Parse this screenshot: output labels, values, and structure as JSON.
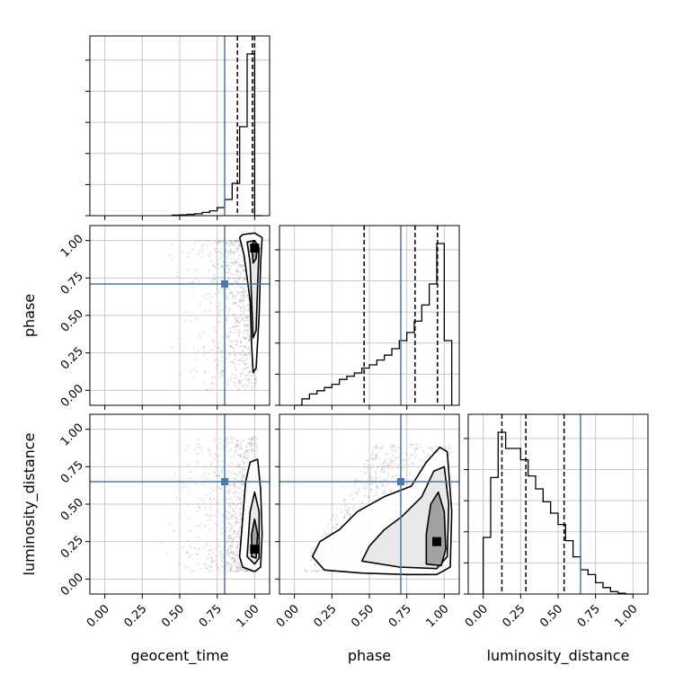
{
  "chart_data": {
    "type": "corner",
    "parameters": [
      "geocent_time",
      "phase",
      "luminosity_distance"
    ],
    "axis_range": [
      -0.1,
      1.1
    ],
    "ticks": [
      0.0,
      0.25,
      0.5,
      0.75,
      1.0
    ],
    "tick_labels": [
      "0.00",
      "0.25",
      "0.50",
      "0.75",
      "1.00"
    ],
    "xlabels": [
      "geocent_time",
      "phase",
      "luminosity_distance"
    ],
    "ylabels": [
      "",
      "phase",
      "luminosity_distance"
    ],
    "grid": true,
    "colors": {
      "truth": "#4878b0",
      "hist": "#000000",
      "scatter": "#8a8a8a",
      "grid": "#c8c8c8"
    },
    "truths": {
      "geocent_time": 0.8,
      "phase": 0.71,
      "luminosity_distance": 0.65
    },
    "histograms": [
      {
        "parameter": "geocent_time",
        "bin_edges": [
          0.45,
          0.5,
          0.55,
          0.6,
          0.65,
          0.7,
          0.75,
          0.8,
          0.85,
          0.9,
          0.95,
          1.0,
          1.05
        ],
        "values": [
          0.003,
          0.005,
          0.008,
          0.012,
          0.02,
          0.03,
          0.05,
          0.1,
          0.2,
          0.55,
          1.0,
          0.0
        ],
        "quantiles": [
          0.885,
          0.985,
          1.0
        ]
      },
      {
        "parameter": "phase",
        "bin_edges": [
          0.0,
          0.05,
          0.1,
          0.15,
          0.2,
          0.25,
          0.3,
          0.35,
          0.4,
          0.45,
          0.5,
          0.55,
          0.6,
          0.65,
          0.7,
          0.75,
          0.8,
          0.85,
          0.9,
          0.95,
          1.0,
          1.05
        ],
        "values": [
          0.0,
          0.04,
          0.07,
          0.09,
          0.11,
          0.13,
          0.16,
          0.18,
          0.2,
          0.23,
          0.25,
          0.28,
          0.31,
          0.35,
          0.4,
          0.45,
          0.52,
          0.62,
          0.75,
          1.0,
          0.4
        ],
        "quantiles": [
          0.465,
          0.805,
          0.955
        ]
      },
      {
        "parameter": "luminosity_distance",
        "bin_edges": [
          0.0,
          0.05,
          0.1,
          0.15,
          0.2,
          0.25,
          0.3,
          0.35,
          0.4,
          0.45,
          0.5,
          0.55,
          0.6,
          0.65,
          0.7,
          0.75,
          0.8,
          0.85,
          0.9,
          0.95,
          1.0
        ],
        "values": [
          0.35,
          0.72,
          1.0,
          0.9,
          0.9,
          0.83,
          0.73,
          0.65,
          0.57,
          0.5,
          0.43,
          0.33,
          0.23,
          0.15,
          0.12,
          0.07,
          0.04,
          0.015,
          0.005,
          0.0
        ],
        "quantiles": [
          0.125,
          0.285,
          0.54
        ]
      }
    ],
    "scatter_panels": [
      {
        "x": "geocent_time",
        "y": "phase",
        "truth_point": [
          0.8,
          0.71
        ],
        "density_peak": [
          1.0,
          0.95
        ],
        "contour_levels": [
          [
            [
              0.9,
              1.02
            ],
            [
              0.93,
              0.9
            ],
            [
              0.97,
              0.6
            ],
            [
              0.98,
              0.3
            ],
            [
              0.99,
              0.12
            ],
            [
              1.01,
              0.15
            ],
            [
              1.03,
              0.5
            ],
            [
              1.04,
              0.85
            ],
            [
              1.05,
              1.02
            ],
            [
              1.0,
              1.05
            ],
            [
              0.92,
              1.04
            ]
          ],
          [
            [
              0.95,
              0.99
            ],
            [
              0.97,
              0.85
            ],
            [
              0.98,
              0.6
            ],
            [
              0.99,
              0.35
            ],
            [
              1.01,
              0.4
            ],
            [
              1.02,
              0.7
            ],
            [
              1.03,
              0.95
            ],
            [
              1.0,
              1.0
            ]
          ],
          [
            [
              0.98,
              0.97
            ],
            [
              0.99,
              0.85
            ],
            [
              1.01,
              0.88
            ],
            [
              1.02,
              0.97
            ],
            [
              1.0,
              1.0
            ]
          ]
        ]
      },
      {
        "x": "geocent_time",
        "y": "luminosity_distance",
        "truth_point": [
          0.8,
          0.65
        ],
        "density_peak": [
          1.0,
          0.2
        ],
        "contour_levels": [
          [
            [
              0.9,
              0.15
            ],
            [
              0.92,
              0.08
            ],
            [
              1.0,
              0.05
            ],
            [
              1.04,
              0.08
            ],
            [
              1.05,
              0.3
            ],
            [
              1.04,
              0.6
            ],
            [
              1.02,
              0.8
            ],
            [
              0.97,
              0.78
            ],
            [
              0.94,
              0.65
            ],
            [
              0.92,
              0.4
            ]
          ],
          [
            [
              0.95,
              0.15
            ],
            [
              1.0,
              0.1
            ],
            [
              1.03,
              0.14
            ],
            [
              1.03,
              0.45
            ],
            [
              1.0,
              0.58
            ],
            [
              0.97,
              0.45
            ],
            [
              0.96,
              0.3
            ]
          ],
          [
            [
              0.98,
              0.15
            ],
            [
              1.01,
              0.14
            ],
            [
              1.02,
              0.3
            ],
            [
              1.0,
              0.4
            ],
            [
              0.98,
              0.3
            ]
          ]
        ]
      },
      {
        "x": "phase",
        "y": "luminosity_distance",
        "truth_point": [
          0.71,
          0.65
        ],
        "density_peak": [
          0.95,
          0.25
        ],
        "contour_levels": [
          [
            [
              0.12,
              0.15
            ],
            [
              0.2,
              0.06
            ],
            [
              0.45,
              0.04
            ],
            [
              0.75,
              0.03
            ],
            [
              0.95,
              0.03
            ],
            [
              1.04,
              0.08
            ],
            [
              1.05,
              0.45
            ],
            [
              1.02,
              0.85
            ],
            [
              0.97,
              0.88
            ],
            [
              0.88,
              0.78
            ],
            [
              0.78,
              0.62
            ],
            [
              0.6,
              0.55
            ],
            [
              0.42,
              0.45
            ],
            [
              0.3,
              0.33
            ],
            [
              0.17,
              0.25
            ]
          ],
          [
            [
              0.45,
              0.12
            ],
            [
              0.7,
              0.08
            ],
            [
              0.95,
              0.07
            ],
            [
              1.02,
              0.15
            ],
            [
              1.03,
              0.5
            ],
            [
              1.0,
              0.75
            ],
            [
              0.93,
              0.72
            ],
            [
              0.85,
              0.55
            ],
            [
              0.72,
              0.42
            ],
            [
              0.6,
              0.33
            ],
            [
              0.5,
              0.22
            ]
          ],
          [
            [
              0.88,
              0.1
            ],
            [
              0.98,
              0.09
            ],
            [
              1.01,
              0.2
            ],
            [
              1.0,
              0.45
            ],
            [
              0.96,
              0.58
            ],
            [
              0.91,
              0.5
            ],
            [
              0.88,
              0.3
            ]
          ]
        ]
      }
    ]
  }
}
